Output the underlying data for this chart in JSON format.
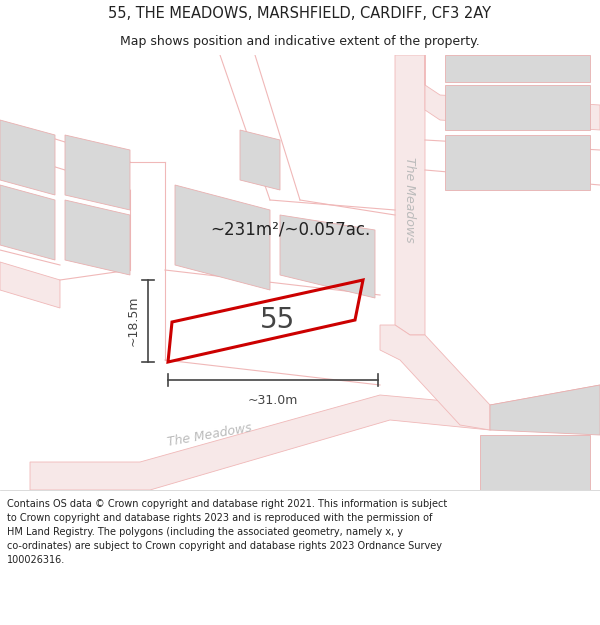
{
  "title": "55, THE MEADOWS, MARSHFIELD, CARDIFF, CF3 2AY",
  "subtitle": "Map shows position and indicative extent of the property.",
  "area_text": "~231m²/~0.057ac.",
  "house_number": "55",
  "dim_width": "~31.0m",
  "dim_height": "~18.5m",
  "footer_lines": [
    "Contains OS data © Crown copyright and database right 2021. This information is subject",
    "to Crown copyright and database rights 2023 and is reproduced with the permission of",
    "HM Land Registry. The polygons (including the associated geometry, namely x, y",
    "co-ordinates) are subject to Crown copyright and database rights 2023 Ordnance Survey",
    "100026316."
  ],
  "bg_color": "#ffffff",
  "map_bg": "#f7f6f4",
  "road_line_color": "#f0b8b8",
  "road_fill_color": "#f7e8e8",
  "plot_edge": "#cc0000",
  "building_fill": "#d8d8d8",
  "building_edge": "#e8b0b0",
  "dim_color": "#444444",
  "road_label_color": "#bbbbbb",
  "title_color": "#222222",
  "footer_color": "#222222",
  "area_label_color": "#222222",
  "number_color": "#444444"
}
